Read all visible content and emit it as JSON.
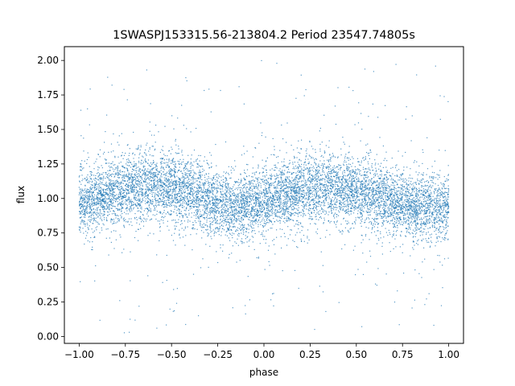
{
  "chart_data": {
    "type": "scatter",
    "title": "1SWASPJ153315.56-213804.2 Period 23547.74805s",
    "xlabel": "phase",
    "ylabel": "flux",
    "xlim": [
      -1.08,
      1.08
    ],
    "ylim": [
      -0.05,
      2.1
    ],
    "xticks": [
      -1.0,
      -0.75,
      -0.5,
      -0.25,
      0.0,
      0.25,
      0.5,
      0.75,
      1.0
    ],
    "xtick_labels": [
      "−1.00",
      "−0.75",
      "−0.50",
      "−0.25",
      "0.00",
      "0.25",
      "0.50",
      "0.75",
      "1.00"
    ],
    "yticks": [
      0.0,
      0.25,
      0.5,
      0.75,
      1.0,
      1.25,
      1.5,
      1.75,
      2.0
    ],
    "ytick_labels": [
      "0.00",
      "0.25",
      "0.50",
      "0.75",
      "1.00",
      "1.25",
      "1.50",
      "1.75",
      "2.00"
    ],
    "grid": false,
    "legend": "none",
    "marker_color": "#1f77b4",
    "point_density_profile": {
      "x": [
        -1.0,
        -0.75,
        -0.6,
        -0.5,
        -0.25,
        -0.15,
        0.0,
        0.25,
        0.35,
        0.5,
        0.75,
        0.85,
        1.0
      ],
      "center_flux": [
        0.97,
        1.07,
        1.1,
        1.08,
        0.96,
        0.93,
        0.98,
        1.07,
        1.08,
        1.05,
        0.97,
        0.94,
        0.95
      ],
      "spread": 0.12,
      "x_range": [
        -1.0,
        1.0
      ],
      "flux_range": [
        0.0,
        2.0
      ]
    }
  }
}
